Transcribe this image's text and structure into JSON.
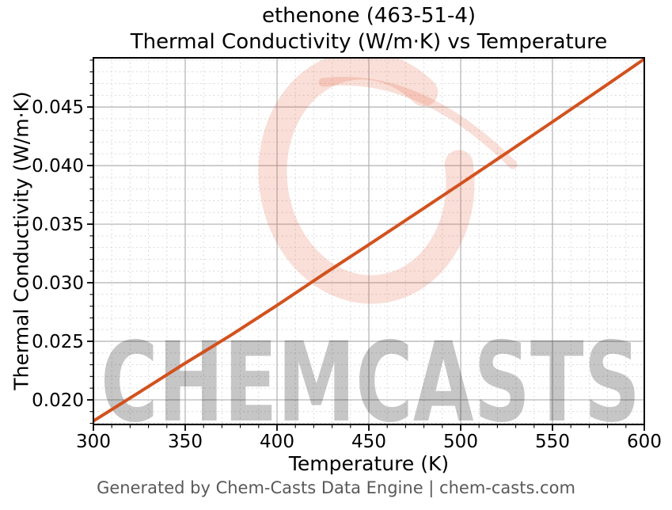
{
  "header": {
    "title_line1": "ethenone (463-51-4)",
    "title_line2": "Thermal Conductivity (W/m·K) vs Temperature"
  },
  "footer": {
    "text": "Generated by Chem-Casts Data Engine | chem-casts.com"
  },
  "watermark": {
    "text": "CHEMCASTS",
    "logo": "brush-ring-c",
    "color": "#e2603c",
    "text_opacity": 0.22,
    "logo_opacity": 0.2
  },
  "chart_data": {
    "type": "line",
    "title": "ethenone (463-51-4)",
    "subtitle": "Thermal Conductivity (W/m·K) vs Temperature",
    "xlabel": "Temperature (K)",
    "ylabel": "Thermal Conductivity (W/m·K)",
    "xlim": [
      300,
      600
    ],
    "ylim": [
      0.0179,
      0.0492
    ],
    "x_ticks": [
      300,
      350,
      400,
      450,
      500,
      550,
      600
    ],
    "x_tick_labels": [
      "300",
      "350",
      "400",
      "450",
      "500",
      "550",
      "600"
    ],
    "y_ticks": [
      0.02,
      0.025,
      0.03,
      0.035,
      0.04,
      0.045
    ],
    "y_tick_labels": [
      "0.020",
      "0.025",
      "0.030",
      "0.035",
      "0.040",
      "0.045"
    ],
    "x_minor_step": 10,
    "y_minor_step": 0.001,
    "grid": true,
    "grid_major_color": "#b0b0b0",
    "grid_minor_color": "#d9d9d9",
    "spine_color": "#000000",
    "series": [
      {
        "name": "thermal-conductivity",
        "color": "#d2521e",
        "x": [
          300,
          325,
          350,
          375,
          400,
          425,
          450,
          475,
          500,
          525,
          550,
          575,
          600
        ],
        "y": [
          0.0182,
          0.02065,
          0.02313,
          0.02553,
          0.02807,
          0.03069,
          0.03325,
          0.03584,
          0.03845,
          0.04108,
          0.04373,
          0.0464,
          0.0491
        ]
      }
    ]
  }
}
